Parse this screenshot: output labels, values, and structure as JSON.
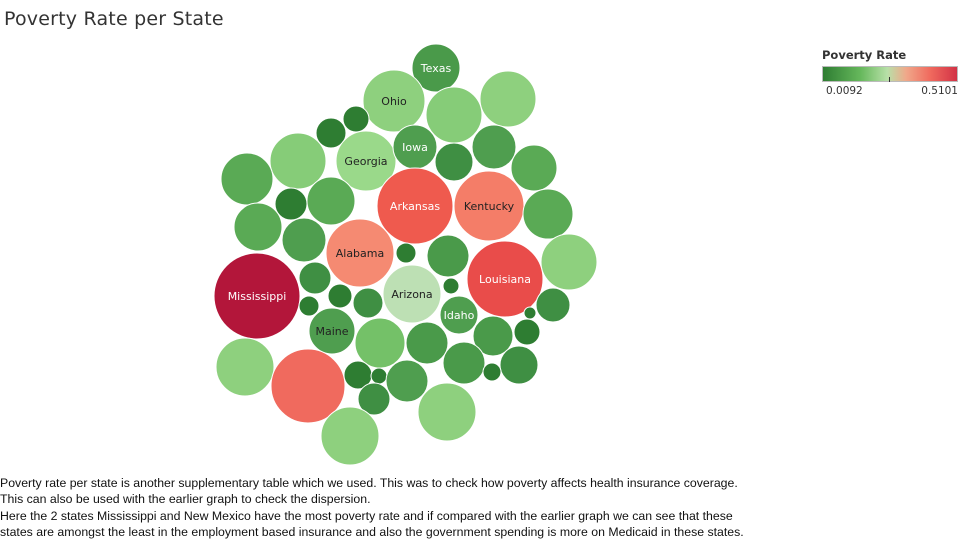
{
  "title": "Poverty Rate per State",
  "legend": {
    "title": "Poverty Rate",
    "min_label": "0.0092",
    "max_label": "0.5101",
    "colors": [
      "#2e7d32",
      "#66b85c",
      "#b8e0a8",
      "#f0a88a",
      "#f06a5e",
      "#d23246"
    ]
  },
  "chart_data": {
    "type": "packed-bubble",
    "title": "Poverty Rate per State",
    "color_measure": "Poverty Rate",
    "color_range": [
      0.0092,
      0.5101
    ],
    "labels": [
      "Texas",
      "Ohio",
      "Georgia",
      "Iowa",
      "Arkansas",
      "Kentucky",
      "Alabama",
      "Louisiana",
      "Mississippi",
      "Arizona",
      "Idaho",
      "Maine"
    ]
  },
  "caption": [
    " Poverty rate per state is another supplementary table which we used. This was to check how poverty affects health insurance coverage.",
    "This can also be used with the earlier graph to check the dispersion.",
    "Here the 2 states Mississippi and New Mexico have the most poverty rate and if compared with the earlier graph we can see that these",
    "states are amongst the least in the employment based insurance and also the government spending is more on Medicaid in these states."
  ]
}
